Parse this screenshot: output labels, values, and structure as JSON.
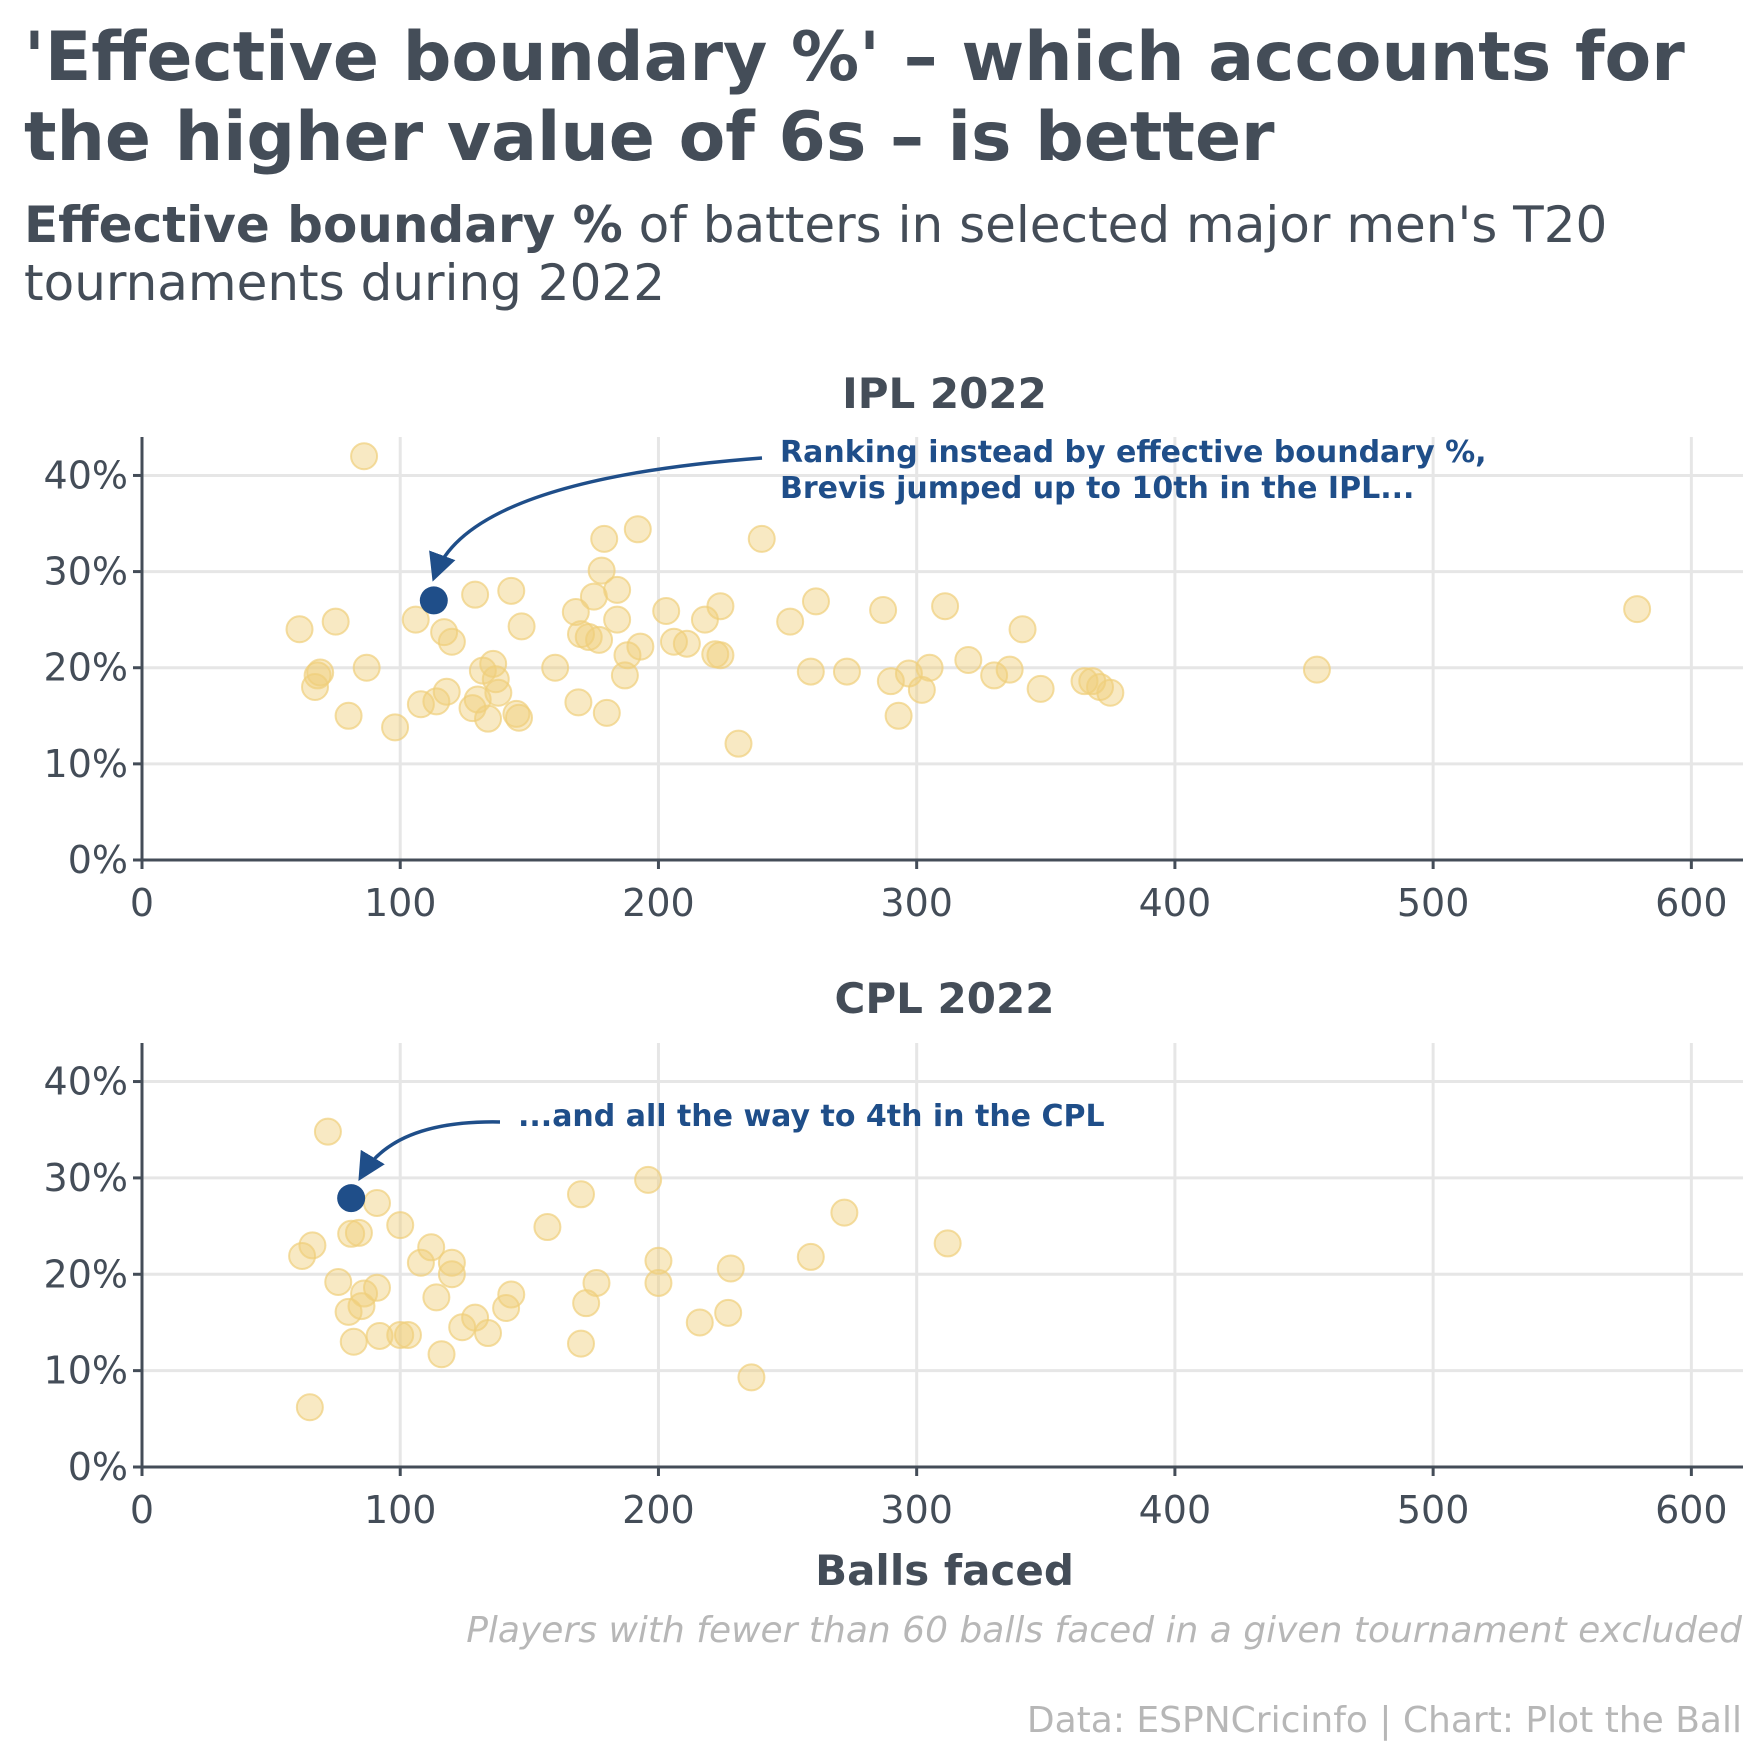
{
  "title": "'Effective boundary %' – which accounts for the higher value of 6s – is better",
  "subtitle": {
    "bold": "Effective boundary %",
    "rest": " of batters in selected major men's T20 tournaments during 2022"
  },
  "note": "Players with fewer than 60 balls faced in a given tournament excluded",
  "source": "Data: ESPNCricinfo | Chart: Plot the Ball",
  "colors": {
    "point": "#f0cf7a",
    "highlight": "#1f4e89",
    "text": "#444d58",
    "grid": "#e6e6e6",
    "axis": "#444d58"
  },
  "chart_data": [
    {
      "type": "scatter",
      "title": "IPL 2022",
      "xlabel": "",
      "ylabel": "",
      "xlim": [
        0,
        620
      ],
      "ylim": [
        0,
        44
      ],
      "xticks": [
        "0",
        "100",
        "200",
        "300",
        "400",
        "500",
        "600"
      ],
      "yticks": [
        "0%",
        "10%",
        "20%",
        "30%",
        "40%"
      ],
      "grid": true,
      "highlight": {
        "x": 113,
        "y": 27
      },
      "annotation": "Ranking instead by effective boundary %, Brevis jumped up to 10th in the IPL...",
      "points": [
        [
          86,
          42
        ],
        [
          61,
          24
        ],
        [
          75,
          24.8
        ],
        [
          69,
          19.5
        ],
        [
          67,
          18
        ],
        [
          68,
          19.2
        ],
        [
          80,
          15
        ],
        [
          87,
          20
        ],
        [
          98,
          13.8
        ],
        [
          106,
          25
        ],
        [
          108,
          16.2
        ],
        [
          114,
          16.5
        ],
        [
          117,
          23.7
        ],
        [
          120,
          22.7
        ],
        [
          118,
          17.5
        ],
        [
          129,
          27.6
        ],
        [
          128,
          15.8
        ],
        [
          130,
          16.7
        ],
        [
          132,
          19.7
        ],
        [
          134,
          14.7
        ],
        [
          136,
          20.4
        ],
        [
          137,
          18.8
        ],
        [
          138,
          17.4
        ],
        [
          143,
          28
        ],
        [
          145,
          15.2
        ],
        [
          146,
          14.8
        ],
        [
          147,
          24.3
        ],
        [
          160,
          20
        ],
        [
          168,
          25.8
        ],
        [
          169,
          16.4
        ],
        [
          170,
          23.5
        ],
        [
          173,
          23.2
        ],
        [
          175,
          27.4
        ],
        [
          177,
          22.9
        ],
        [
          178,
          30.1
        ],
        [
          179,
          33.4
        ],
        [
          180,
          15.3
        ],
        [
          184,
          25
        ],
        [
          184,
          28.1
        ],
        [
          187,
          19.2
        ],
        [
          188,
          21.3
        ],
        [
          192,
          34.4
        ],
        [
          193,
          22.2
        ],
        [
          203,
          25.9
        ],
        [
          206,
          22.7
        ],
        [
          211,
          22.5
        ],
        [
          218,
          25
        ],
        [
          222,
          21.4
        ],
        [
          224,
          21.3
        ],
        [
          224,
          26.4
        ],
        [
          231,
          12.1
        ],
        [
          240,
          33.4
        ],
        [
          251,
          24.8
        ],
        [
          259,
          19.6
        ],
        [
          261,
          26.9
        ],
        [
          273,
          19.6
        ],
        [
          287,
          26
        ],
        [
          290,
          18.6
        ],
        [
          293,
          15
        ],
        [
          297,
          19.4
        ],
        [
          302,
          17.7
        ],
        [
          305,
          20
        ],
        [
          311,
          26.4
        ],
        [
          320,
          20.8
        ],
        [
          330,
          19.2
        ],
        [
          336,
          19.8
        ],
        [
          341,
          24
        ],
        [
          348,
          17.8
        ],
        [
          365,
          18.6
        ],
        [
          368,
          18.6
        ],
        [
          371,
          18
        ],
        [
          375,
          17.4
        ],
        [
          455,
          19.8
        ],
        [
          579,
          26.1
        ]
      ]
    },
    {
      "type": "scatter",
      "title": "CPL 2022",
      "xlabel": "Balls faced",
      "ylabel": "",
      "xlim": [
        0,
        620
      ],
      "ylim": [
        0,
        44
      ],
      "xticks": [
        "0",
        "100",
        "200",
        "300",
        "400",
        "500",
        "600"
      ],
      "yticks": [
        "0%",
        "10%",
        "20%",
        "30%",
        "40%"
      ],
      "grid": true,
      "highlight": {
        "x": 81,
        "y": 27.9
      },
      "annotation": "...and all the way to 4th in the CPL",
      "points": [
        [
          62,
          21.9
        ],
        [
          65,
          6.2
        ],
        [
          66,
          23
        ],
        [
          72,
          34.8
        ],
        [
          76,
          19.2
        ],
        [
          81,
          24.2
        ],
        [
          80,
          16.1
        ],
        [
          82,
          13
        ],
        [
          84,
          24.3
        ],
        [
          85,
          16.7
        ],
        [
          86,
          18
        ],
        [
          91,
          27.4
        ],
        [
          91,
          18.6
        ],
        [
          92,
          13.6
        ],
        [
          100,
          13.7
        ],
        [
          100,
          25.1
        ],
        [
          103,
          13.7
        ],
        [
          108,
          21.2
        ],
        [
          112,
          22.8
        ],
        [
          114,
          17.6
        ],
        [
          116,
          11.7
        ],
        [
          120,
          21.2
        ],
        [
          120,
          20
        ],
        [
          124,
          14.5
        ],
        [
          129,
          15.5
        ],
        [
          134,
          13.9
        ],
        [
          141,
          16.5
        ],
        [
          143,
          17.9
        ],
        [
          157,
          24.9
        ],
        [
          170,
          28.3
        ],
        [
          170,
          12.8
        ],
        [
          172,
          17
        ],
        [
          176,
          19.1
        ],
        [
          196,
          29.8
        ],
        [
          200,
          21.4
        ],
        [
          200,
          19.1
        ],
        [
          216,
          15
        ],
        [
          227,
          16
        ],
        [
          228,
          20.6
        ],
        [
          236,
          9.3
        ],
        [
          259,
          21.8
        ],
        [
          272,
          26.4
        ],
        [
          312,
          23.2
        ]
      ]
    }
  ]
}
